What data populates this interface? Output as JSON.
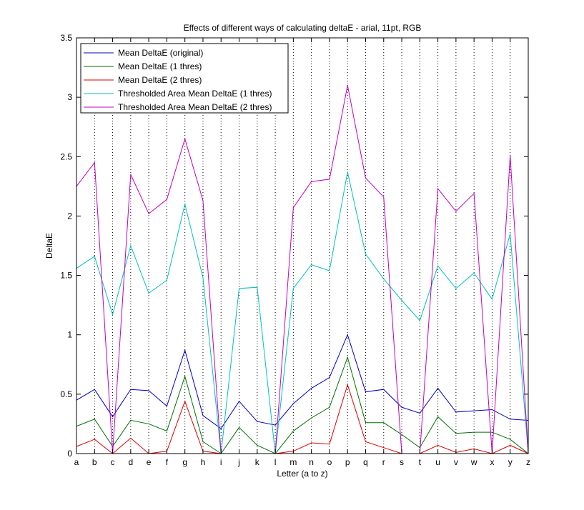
{
  "chart_data": {
    "type": "line",
    "title": "Effects of different ways of calculating deltaE - arial, 11pt, RGB",
    "xlabel": "Letter (a to z)",
    "ylabel": "DeltaE",
    "ylim": [
      0,
      3.5
    ],
    "yticks": [
      "0",
      "0.5",
      "1",
      "1.5",
      "2",
      "2.5",
      "3",
      "3.5"
    ],
    "categories": [
      "a",
      "b",
      "c",
      "d",
      "e",
      "f",
      "g",
      "h",
      "i",
      "j",
      "k",
      "l",
      "m",
      "n",
      "o",
      "p",
      "q",
      "r",
      "s",
      "t",
      "u",
      "v",
      "w",
      "x",
      "y",
      "z"
    ],
    "grid": "vertical dotted lines at each letter",
    "legend_position": "top-left",
    "series": [
      {
        "name": "Mean DeltaE (original)",
        "color": "#0000c8",
        "values": [
          0.45,
          0.54,
          0.31,
          0.54,
          0.53,
          0.4,
          0.87,
          0.32,
          0.21,
          0.44,
          0.27,
          0.24,
          0.42,
          0.55,
          0.64,
          1.0,
          0.52,
          0.54,
          0.39,
          0.34,
          0.55,
          0.35,
          0.36,
          0.37,
          0.29,
          0.28
        ]
      },
      {
        "name": "Mean DeltaE (1 thres)",
        "color": "#007000",
        "values": [
          0.23,
          0.29,
          0.06,
          0.28,
          0.25,
          0.19,
          0.65,
          0.1,
          0.0,
          0.22,
          0.07,
          0.0,
          0.19,
          0.3,
          0.39,
          0.81,
          0.26,
          0.26,
          0.16,
          0.05,
          0.31,
          0.17,
          0.18,
          0.18,
          0.12,
          0.0
        ]
      },
      {
        "name": "Mean DeltaE (2 thres)",
        "color": "#e00000",
        "values": [
          0.06,
          0.12,
          0.0,
          0.13,
          0.0,
          0.02,
          0.44,
          0.02,
          0.0,
          0.0,
          0.0,
          0.0,
          0.02,
          0.09,
          0.08,
          0.58,
          0.1,
          0.05,
          0.0,
          0.0,
          0.07,
          0.01,
          0.04,
          0.0,
          0.07,
          0.0
        ]
      },
      {
        "name": "Thresholded Area Mean DeltaE (1 thres)",
        "color": "#00c0c0",
        "values": [
          1.56,
          1.66,
          1.17,
          1.75,
          1.35,
          1.46,
          2.1,
          1.48,
          0.0,
          1.39,
          1.4,
          0.0,
          1.39,
          1.59,
          1.54,
          2.37,
          1.68,
          1.47,
          1.29,
          1.12,
          1.58,
          1.39,
          1.52,
          1.3,
          1.85,
          0.0
        ]
      },
      {
        "name": "Thresholded Area Mean DeltaE (2 thres)",
        "color": "#c000c0",
        "values": [
          2.25,
          2.45,
          0.0,
          2.35,
          2.02,
          2.14,
          2.65,
          2.13,
          0.0,
          0.0,
          0.0,
          0.0,
          2.07,
          2.29,
          2.31,
          3.1,
          2.32,
          2.16,
          0.0,
          0.0,
          2.23,
          2.04,
          2.19,
          0.0,
          2.51,
          0.0
        ]
      }
    ]
  }
}
